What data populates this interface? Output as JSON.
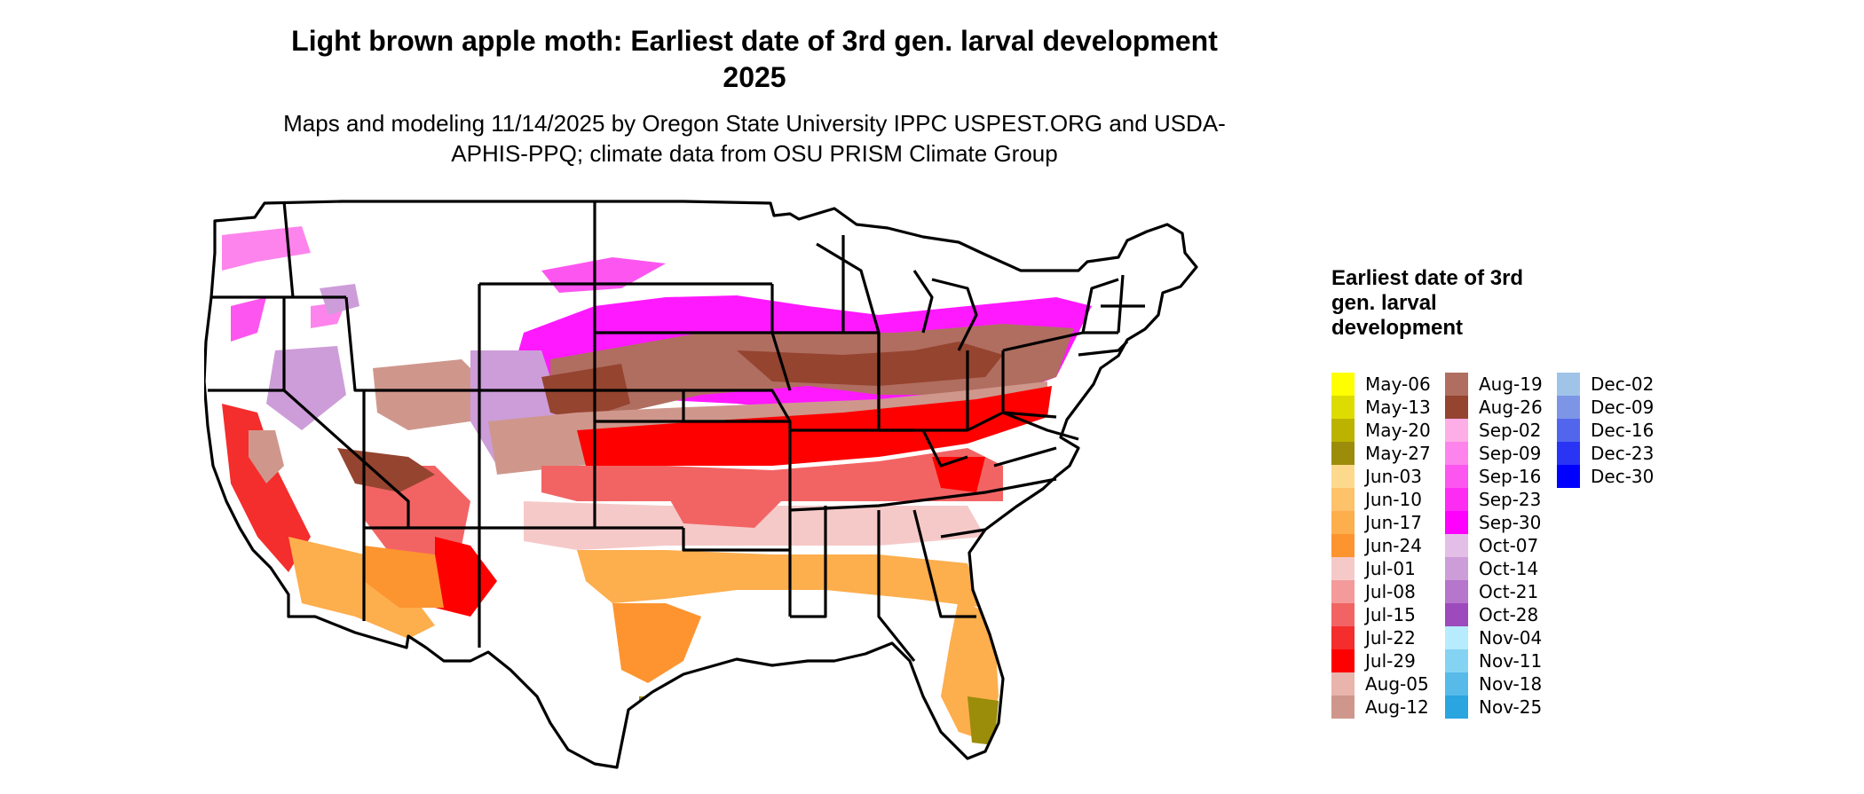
{
  "title": "Light brown apple moth: Earliest date of 3rd gen. larval development 2025",
  "subtitle": "Maps and modeling 11/14/2025 by Oregon State University IPPC USPEST.ORG and USDA-APHIS-PPQ; climate data from OSU PRISM Climate Group",
  "legend": {
    "title": "Earliest date of 3rd gen. larval development",
    "items": [
      {
        "label": "May-06",
        "color": "#ffff00"
      },
      {
        "label": "May-13",
        "color": "#dcdc00"
      },
      {
        "label": "May-20",
        "color": "#bcb300"
      },
      {
        "label": "May-27",
        "color": "#9b8c0a"
      },
      {
        "label": "Jun-03",
        "color": "#fdd98e"
      },
      {
        "label": "Jun-10",
        "color": "#fdc26a"
      },
      {
        "label": "Jun-17",
        "color": "#fdae4d"
      },
      {
        "label": "Jun-24",
        "color": "#fc9430"
      },
      {
        "label": "Jul-01",
        "color": "#f6c9c9"
      },
      {
        "label": "Jul-08",
        "color": "#f49a9a"
      },
      {
        "label": "Jul-15",
        "color": "#f26464"
      },
      {
        "label": "Jul-22",
        "color": "#f42d2d"
      },
      {
        "label": "Jul-29",
        "color": "#ff0000"
      },
      {
        "label": "Aug-05",
        "color": "#e8b4ac"
      },
      {
        "label": "Aug-12",
        "color": "#cf978c"
      },
      {
        "label": "Aug-19",
        "color": "#b06e60"
      },
      {
        "label": "Aug-26",
        "color": "#954430"
      },
      {
        "label": "Sep-02",
        "color": "#fdaee6"
      },
      {
        "label": "Sep-09",
        "color": "#fd84ec"
      },
      {
        "label": "Sep-16",
        "color": "#fd55ef"
      },
      {
        "label": "Sep-23",
        "color": "#fd2cf3"
      },
      {
        "label": "Sep-30",
        "color": "#ff00ff"
      },
      {
        "label": "Oct-07",
        "color": "#e3bfe8"
      },
      {
        "label": "Oct-14",
        "color": "#cd9dd9"
      },
      {
        "label": "Oct-21",
        "color": "#b576cb"
      },
      {
        "label": "Oct-28",
        "color": "#9d4abd"
      },
      {
        "label": "Nov-04",
        "color": "#b6ecfd"
      },
      {
        "label": "Nov-11",
        "color": "#85d3f3"
      },
      {
        "label": "Nov-18",
        "color": "#58bae9"
      },
      {
        "label": "Nov-25",
        "color": "#2aa5df"
      },
      {
        "label": "Dec-02",
        "color": "#9fc4e8"
      },
      {
        "label": "Dec-09",
        "color": "#7d95e6"
      },
      {
        "label": "Dec-16",
        "color": "#5266ed"
      },
      {
        "label": "Dec-23",
        "color": "#2a34f5"
      },
      {
        "label": "Dec-30",
        "color": "#0000ff"
      }
    ]
  }
}
